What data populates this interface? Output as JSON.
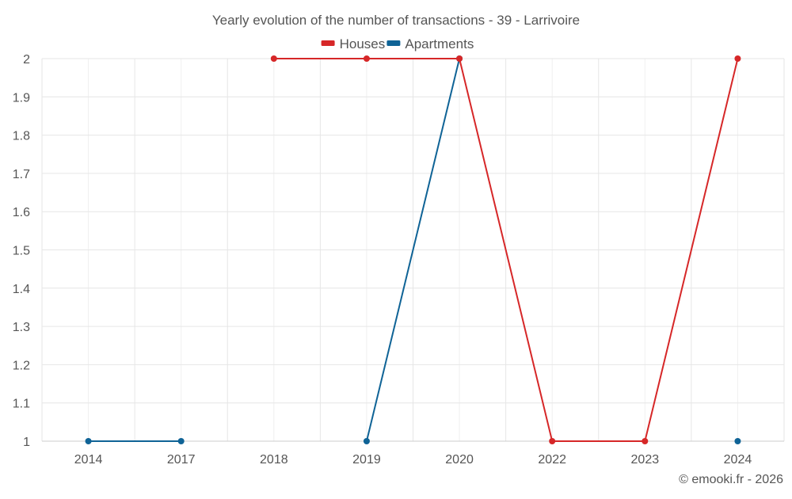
{
  "chart_data": {
    "type": "line",
    "title": "Yearly evolution of the number of transactions - 39 - Larrivoire",
    "categories": [
      "2014",
      "2017",
      "2018",
      "2019",
      "2020",
      "2022",
      "2023",
      "2024"
    ],
    "series": [
      {
        "name": "Houses",
        "color": "#d62728",
        "values": [
          null,
          null,
          2,
          2,
          2,
          1,
          1,
          2
        ]
      },
      {
        "name": "Apartments",
        "color": "#0f6396",
        "values": [
          1,
          1,
          null,
          1,
          2,
          null,
          null,
          1
        ]
      }
    ],
    "ylim": [
      1,
      2
    ],
    "yticks": [
      "1",
      "1.1",
      "1.2",
      "1.3",
      "1.4",
      "1.5",
      "1.6",
      "1.7",
      "1.8",
      "1.9",
      "2"
    ],
    "grid": true,
    "legend_position": "top-center",
    "credit": "© emooki.fr - 2026"
  }
}
